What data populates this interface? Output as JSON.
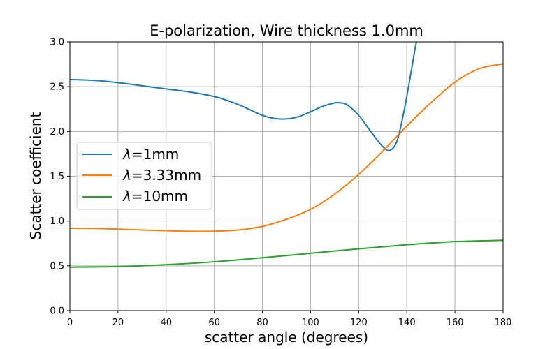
{
  "chart_data": {
    "type": "line",
    "title": "E-polarization, Wire thickness 1.0mm",
    "xlabel": "scatter angle (degrees)",
    "ylabel": "Scatter coefficient",
    "xlim": [
      0,
      180
    ],
    "ylim": [
      0,
      3.0
    ],
    "xticks": [
      "0",
      "20",
      "40",
      "60",
      "80",
      "100",
      "120",
      "140",
      "160",
      "180"
    ],
    "yticks": [
      "0.0",
      "0.5",
      "1.0",
      "1.5",
      "2.0",
      "2.5",
      "3.0"
    ],
    "grid": true,
    "legend_position": "center-left",
    "series": [
      {
        "name": "λ=1mm",
        "name_symbol": "λ",
        "name_rest": "=1mm",
        "color": "#1f77b4",
        "x": [
          0,
          10,
          20,
          30,
          40,
          50,
          60,
          65,
          70,
          75,
          80,
          85,
          90,
          95,
          100,
          105,
          110,
          112,
          115,
          120,
          125,
          130,
          133,
          136,
          139,
          142,
          144,
          146
        ],
        "y": [
          2.58,
          2.57,
          2.545,
          2.51,
          2.475,
          2.44,
          2.39,
          2.35,
          2.3,
          2.24,
          2.18,
          2.145,
          2.14,
          2.165,
          2.22,
          2.28,
          2.318,
          2.32,
          2.3,
          2.18,
          2.0,
          1.83,
          1.79,
          1.9,
          2.25,
          2.7,
          3.0,
          3.12
        ]
      },
      {
        "name": "λ=3.33mm",
        "name_symbol": "λ",
        "name_rest": "=3.33mm",
        "color": "#ff7f0e",
        "x": [
          0,
          10,
          20,
          30,
          40,
          50,
          60,
          70,
          80,
          90,
          100,
          110,
          120,
          130,
          140,
          150,
          160,
          170,
          180
        ],
        "y": [
          0.92,
          0.918,
          0.91,
          0.9,
          0.892,
          0.885,
          0.886,
          0.9,
          0.94,
          1.02,
          1.13,
          1.3,
          1.52,
          1.78,
          2.06,
          2.32,
          2.55,
          2.7,
          2.755
        ]
      },
      {
        "name": "λ=10mm",
        "name_symbol": "λ",
        "name_rest": "=10mm",
        "color": "#2ca02c",
        "x": [
          0,
          20,
          40,
          60,
          80,
          100,
          120,
          140,
          160,
          180
        ],
        "y": [
          0.485,
          0.492,
          0.513,
          0.545,
          0.59,
          0.64,
          0.69,
          0.735,
          0.77,
          0.785
        ]
      }
    ]
  }
}
